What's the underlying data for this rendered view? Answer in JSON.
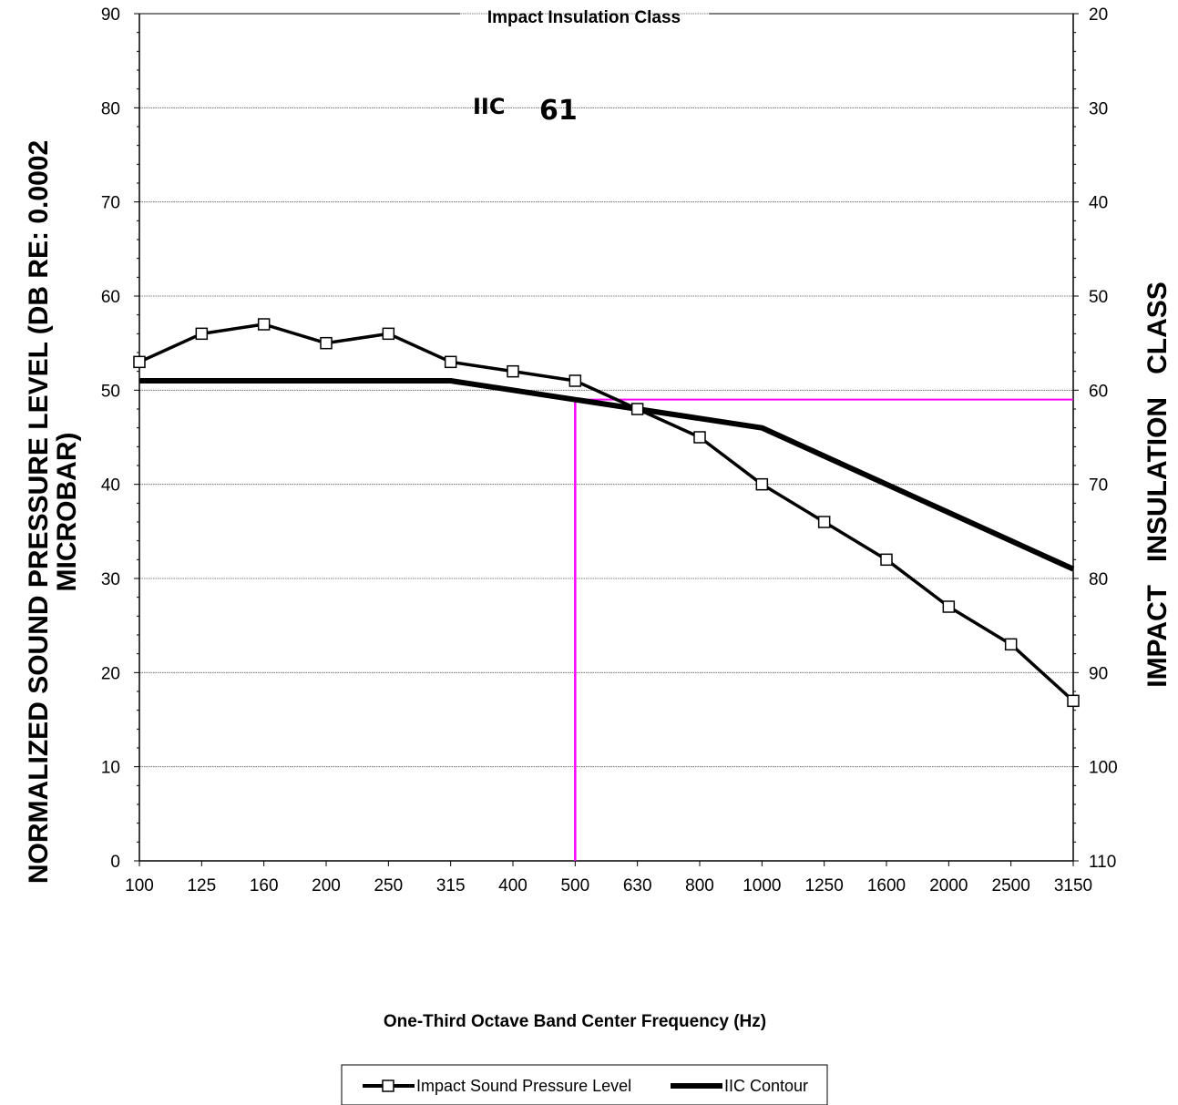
{
  "chart_data": {
    "type": "line",
    "title": "Impact Insulation Class",
    "annotation": {
      "label": "IIC",
      "value": "61"
    },
    "xlabel": "One-Third Octave Band Center Frequency (Hz)",
    "ylabel_line1": "NORMALIZED SOUND PRESSURE LEVEL (DB RE: 0.0002",
    "ylabel_line2": "MICROBAR)",
    "ylabel_right": "IMPACT   INSULATION   CLASS",
    "categories": [
      "100",
      "125",
      "160",
      "200",
      "250",
      "315",
      "400",
      "500",
      "630",
      "800",
      "1000",
      "1250",
      "1600",
      "2000",
      "2500",
      "3150"
    ],
    "ylim": [
      0,
      90
    ],
    "yticks": [
      "0",
      "10",
      "20",
      "30",
      "40",
      "50",
      "60",
      "70",
      "80",
      "90"
    ],
    "y2ticks": [
      "110",
      "100",
      "90",
      "80",
      "70",
      "60",
      "50",
      "40",
      "30",
      "20"
    ],
    "grid": true,
    "series": [
      {
        "name": "Impact Sound Pressure Level",
        "marker": "square",
        "values": [
          53,
          56,
          57,
          55,
          56,
          53,
          52,
          51,
          48,
          45,
          40,
          36,
          32,
          27,
          23,
          17
        ]
      },
      {
        "name": "IIC Contour",
        "marker": "none",
        "values": [
          51,
          51,
          51,
          51,
          51,
          51,
          50,
          49,
          48,
          47,
          46,
          43,
          40,
          37,
          34,
          31
        ]
      }
    ],
    "reference_lines": {
      "x": "500",
      "y": 49,
      "color": "#ff00ff"
    },
    "legend_position": "bottom"
  }
}
